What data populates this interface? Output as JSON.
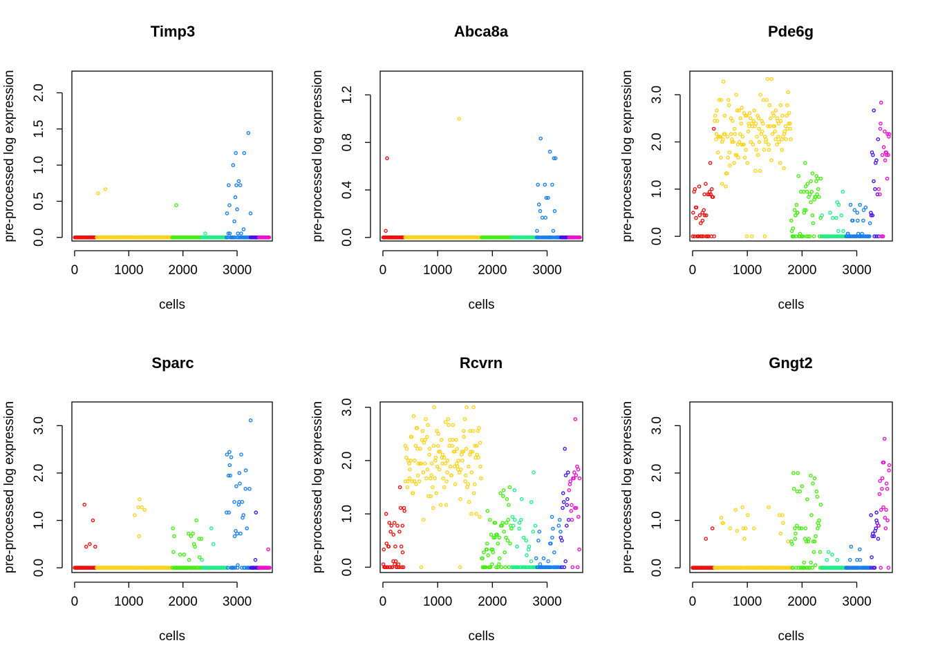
{
  "figure": {
    "ylabel": "pre-processed log expression",
    "xlabel": "cells"
  },
  "clusters": [
    {
      "id": 1,
      "range": [
        0,
        400
      ],
      "color": "#ee1111"
    },
    {
      "id": 2,
      "range": [
        400,
        1800
      ],
      "color": "#ffd21a"
    },
    {
      "id": 3,
      "range": [
        1800,
        2350
      ],
      "color": "#44ee11"
    },
    {
      "id": 4,
      "range": [
        2350,
        2800
      ],
      "color": "#22ee88"
    },
    {
      "id": 5,
      "range": [
        2800,
        3250
      ],
      "color": "#1a7fee"
    },
    {
      "id": 6,
      "range": [
        3250,
        3400
      ],
      "color": "#4411ee"
    },
    {
      "id": 7,
      "range": [
        3400,
        3600
      ],
      "color": "#ee11cc"
    }
  ],
  "chart_data": [
    {
      "type": "scatter",
      "title": "Timp3",
      "xlabel": "cells",
      "ylabel": "pre-processed log expression",
      "xlim": [
        -50,
        3650
      ],
      "ylim": [
        -0.05,
        2.3
      ],
      "xticks": [
        0,
        1000,
        2000,
        3000
      ],
      "yticks": [
        0.0,
        0.5,
        1.0,
        1.5,
        2.0
      ],
      "ytick_labels": [
        "0.0",
        "0.5",
        "1.0",
        "1.5",
        "2.0"
      ],
      "profile": [
        {
          "frac": 0.01,
          "mean": 0.4,
          "sd": 0.2
        },
        {
          "frac": 0.015,
          "mean": 0.8,
          "sd": 0.3
        },
        {
          "frac": 0.015,
          "mean": 0.3,
          "sd": 0.2
        },
        {
          "frac": 0.03,
          "mean": 0.2,
          "sd": 0.15
        },
        {
          "frac": 0.55,
          "mean": 0.4,
          "sd": 0.4,
          "max": 2.25
        },
        {
          "frac": 0.0,
          "mean": 0.3,
          "sd": 0.1
        },
        {
          "frac": 0.01,
          "mean": 0.33,
          "sd": 0.05
        }
      ]
    },
    {
      "type": "scatter",
      "title": "Abca8a",
      "xlabel": "cells",
      "ylabel": "pre-processed log expression",
      "xlim": [
        -50,
        3650
      ],
      "ylim": [
        -0.03,
        1.4
      ],
      "xticks": [
        0,
        1000,
        2000,
        3000
      ],
      "yticks": [
        0.0,
        0.4,
        0.8,
        1.2
      ],
      "ytick_labels": [
        "0.0",
        "0.4",
        "0.8",
        "1.2"
      ],
      "profile": [
        {
          "frac": 0.02,
          "mean": 0.35,
          "sd": 0.15
        },
        {
          "frac": 0.007,
          "mean": 0.7,
          "sd": 0.3
        },
        {
          "frac": 0.006,
          "mean": 0.25,
          "sd": 0.2
        },
        {
          "frac": 0.0,
          "mean": 0.3,
          "sd": 0.1
        },
        {
          "frac": 0.5,
          "mean": 0.3,
          "sd": 0.3,
          "max": 1.35
        },
        {
          "frac": 0.0,
          "mean": 0.3,
          "sd": 0.1
        },
        {
          "frac": 0.005,
          "mean": 0.6,
          "sd": 0.05
        }
      ]
    },
    {
      "type": "scatter",
      "title": "Pde6g",
      "xlabel": "cells",
      "ylabel": "pre-processed log expression",
      "xlim": [
        -50,
        3650
      ],
      "ylim": [
        -0.1,
        3.5
      ],
      "xticks": [
        0,
        1000,
        2000,
        3000
      ],
      "yticks": [
        0.0,
        1.0,
        2.0,
        3.0
      ],
      "ytick_labels": [
        "0.0",
        "1.0",
        "2.0",
        "3.0"
      ],
      "profile": [
        {
          "frac": 0.7,
          "mean": 0.6,
          "sd": 0.45,
          "trend": true
        },
        {
          "frac": 0.98,
          "mean": 2.2,
          "sd": 0.45,
          "max": 3.35
        },
        {
          "frac": 0.8,
          "mean": 0.6,
          "sd": 0.45,
          "trend": true
        },
        {
          "frac": 0.5,
          "mean": 0.35,
          "sd": 0.35
        },
        {
          "frac": 0.4,
          "mean": 0.3,
          "sd": 0.3
        },
        {
          "frac": 0.8,
          "mean": 1.4,
          "sd": 0.7
        },
        {
          "frac": 0.95,
          "mean": 1.9,
          "sd": 0.55,
          "max": 3.0
        }
      ]
    },
    {
      "type": "scatter",
      "title": "Sparc",
      "xlabel": "cells",
      "ylabel": "pre-processed log expression",
      "xlim": [
        -50,
        3650
      ],
      "ylim": [
        -0.1,
        3.5
      ],
      "xticks": [
        0,
        1000,
        2000,
        3000
      ],
      "yticks": [
        0.0,
        1.0,
        2.0,
        3.0
      ],
      "ytick_labels": [
        "0.0",
        "1.0",
        "2.0",
        "3.0"
      ],
      "profile": [
        {
          "frac": 0.12,
          "mean": 0.5,
          "sd": 0.4,
          "trend": true
        },
        {
          "frac": 0.06,
          "mean": 1.0,
          "sd": 0.5
        },
        {
          "frac": 0.25,
          "mean": 0.5,
          "sd": 0.35,
          "trend": true
        },
        {
          "frac": 0.12,
          "mean": 0.3,
          "sd": 0.25
        },
        {
          "frac": 0.75,
          "mean": 1.3,
          "sd": 0.8,
          "max": 3.35
        },
        {
          "frac": 0.2,
          "mean": 0.6,
          "sd": 0.4
        },
        {
          "frac": 0.1,
          "mean": 0.6,
          "sd": 0.2
        }
      ]
    },
    {
      "type": "scatter",
      "title": "Rcvrn",
      "xlabel": "cells",
      "ylabel": "pre-processed log expression",
      "xlim": [
        -50,
        3650
      ],
      "ylim": [
        -0.1,
        3.1
      ],
      "xticks": [
        0,
        1000,
        2000,
        3000
      ],
      "yticks": [
        0.0,
        1.0,
        2.0,
        3.0
      ],
      "ytick_labels": [
        "0.0",
        "1.0",
        "2.0",
        "3.0"
      ],
      "profile": [
        {
          "frac": 0.7,
          "mean": 0.6,
          "sd": 0.4,
          "trend": true
        },
        {
          "frac": 0.97,
          "mean": 1.9,
          "sd": 0.45,
          "max": 3.0
        },
        {
          "frac": 0.8,
          "mean": 0.6,
          "sd": 0.4,
          "trend": true
        },
        {
          "frac": 0.6,
          "mean": 0.5,
          "sd": 0.4
        },
        {
          "frac": 0.3,
          "mean": 0.4,
          "sd": 0.4
        },
        {
          "frac": 0.85,
          "mean": 1.2,
          "sd": 0.5
        },
        {
          "frac": 0.95,
          "mean": 1.5,
          "sd": 0.5,
          "max": 3.0
        }
      ]
    },
    {
      "type": "scatter",
      "title": "Gngt2",
      "xlabel": "cells",
      "ylabel": "pre-processed log expression",
      "xlim": [
        -50,
        3650
      ],
      "ylim": [
        -0.1,
        3.5
      ],
      "xticks": [
        0,
        1000,
        2000,
        3000
      ],
      "yticks": [
        0.0,
        1.0,
        2.0,
        3.0
      ],
      "ytick_labels": [
        "0.0",
        "1.0",
        "2.0",
        "3.0"
      ],
      "profile": [
        {
          "frac": 0.2,
          "mean": 0.4,
          "sd": 0.25,
          "trend": true
        },
        {
          "frac": 0.12,
          "mean": 0.9,
          "sd": 0.25
        },
        {
          "frac": 0.8,
          "mean": 0.9,
          "sd": 0.6,
          "max": 3.0
        },
        {
          "frac": 0.06,
          "mean": 0.2,
          "sd": 0.1
        },
        {
          "frac": 0.05,
          "mean": 0.3,
          "sd": 0.2
        },
        {
          "frac": 0.7,
          "mean": 0.6,
          "sd": 0.4
        },
        {
          "frac": 0.95,
          "mean": 1.7,
          "sd": 0.6,
          "max": 3.35
        }
      ]
    }
  ]
}
